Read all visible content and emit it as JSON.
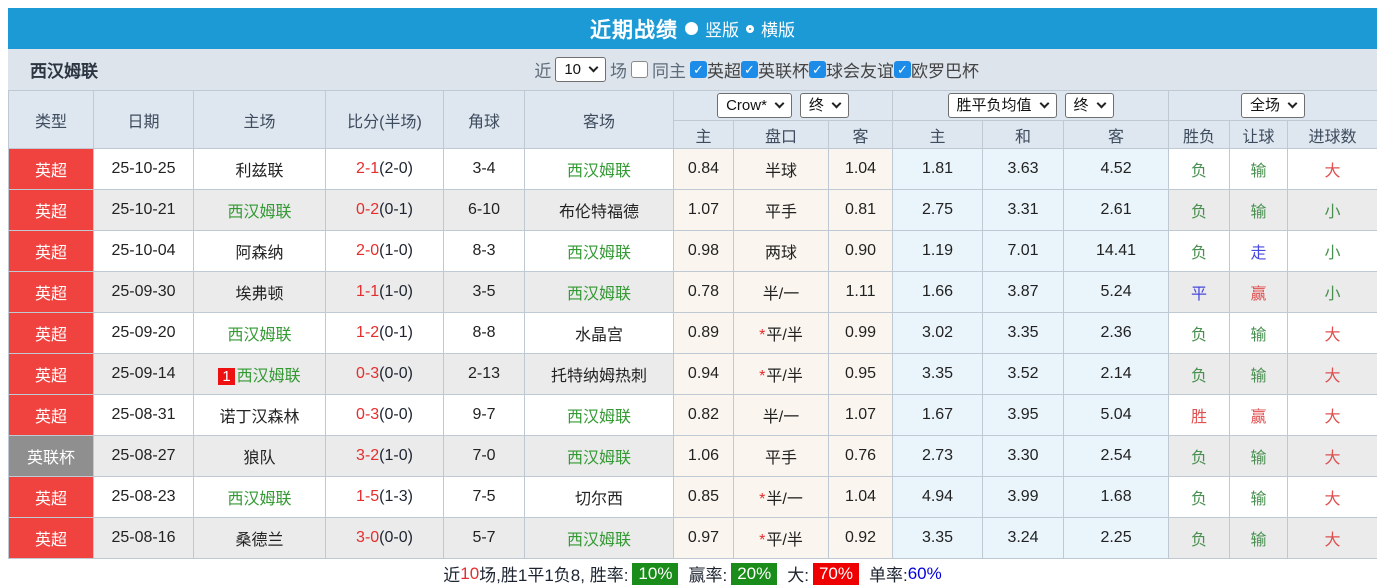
{
  "titlebar": {
    "title": "近期战绩",
    "view_options": [
      {
        "label": "竖版",
        "selected": true
      },
      {
        "label": "横版",
        "selected": false
      }
    ]
  },
  "filter": {
    "team": "西汉姆联",
    "recent_label": "近",
    "recent_count": "10",
    "games_label": "场",
    "same_home": {
      "label": "同主",
      "checked": false
    },
    "leagues": [
      {
        "label": "英超",
        "checked": true
      },
      {
        "label": "英联杯",
        "checked": true
      },
      {
        "label": "球会友谊",
        "checked": true
      },
      {
        "label": "欧罗巴杯",
        "checked": true
      }
    ]
  },
  "table": {
    "left_headers": [
      "类型",
      "日期",
      "主场",
      "比分(半场)",
      "角球",
      "客场"
    ],
    "selects": {
      "odds_source": "Crow*",
      "odds_time": "终",
      "europe_source": "胜平负均值",
      "europe_time": "终",
      "scope": "全场"
    },
    "sub_headers": [
      "主",
      "盘口",
      "客",
      "主",
      "和",
      "客",
      "胜负",
      "让球",
      "进球数"
    ],
    "rows": [
      {
        "type": "英超",
        "type_variant": "red",
        "date": "25-10-25",
        "home": "利兹联",
        "home_focus": false,
        "home_badge": "",
        "score": "2-1",
        "half": "(2-0)",
        "corner": "3-4",
        "away": "西汉姆联",
        "away_focus": true,
        "asian_home": "0.84",
        "handicap": "半球",
        "handicap_star": false,
        "asian_away": "1.04",
        "euro_home": "1.81",
        "euro_draw": "3.63",
        "euro_away": "4.52",
        "result": "负",
        "result_color": "green",
        "cover": "输",
        "cover_color": "green",
        "goals": "大",
        "goals_color": "red"
      },
      {
        "type": "英超",
        "type_variant": "red",
        "date": "25-10-21",
        "home": "西汉姆联",
        "home_focus": true,
        "home_badge": "",
        "score": "0-2",
        "half": "(0-1)",
        "corner": "6-10",
        "away": "布伦特福德",
        "away_focus": false,
        "asian_home": "1.07",
        "handicap": "平手",
        "handicap_star": false,
        "asian_away": "0.81",
        "euro_home": "2.75",
        "euro_draw": "3.31",
        "euro_away": "2.61",
        "result": "负",
        "result_color": "green",
        "cover": "输",
        "cover_color": "green",
        "goals": "小",
        "goals_color": "green"
      },
      {
        "type": "英超",
        "type_variant": "red",
        "date": "25-10-04",
        "home": "阿森纳",
        "home_focus": false,
        "home_badge": "",
        "score": "2-0",
        "half": "(1-0)",
        "corner": "8-3",
        "away": "西汉姆联",
        "away_focus": true,
        "asian_home": "0.98",
        "handicap": "两球",
        "handicap_star": false,
        "asian_away": "0.90",
        "euro_home": "1.19",
        "euro_draw": "7.01",
        "euro_away": "14.41",
        "result": "负",
        "result_color": "green",
        "cover": "走",
        "cover_color": "blue",
        "goals": "小",
        "goals_color": "green"
      },
      {
        "type": "英超",
        "type_variant": "red",
        "date": "25-09-30",
        "home": "埃弗顿",
        "home_focus": false,
        "home_badge": "",
        "score": "1-1",
        "half": "(1-0)",
        "corner": "3-5",
        "away": "西汉姆联",
        "away_focus": true,
        "asian_home": "0.78",
        "handicap": "半/一",
        "handicap_star": false,
        "asian_away": "1.11",
        "euro_home": "1.66",
        "euro_draw": "3.87",
        "euro_away": "5.24",
        "result": "平",
        "result_color": "blue",
        "cover": "赢",
        "cover_color": "red",
        "goals": "小",
        "goals_color": "green"
      },
      {
        "type": "英超",
        "type_variant": "red",
        "date": "25-09-20",
        "home": "西汉姆联",
        "home_focus": true,
        "home_badge": "",
        "score": "1-2",
        "half": "(0-1)",
        "corner": "8-8",
        "away": "水晶宫",
        "away_focus": false,
        "asian_home": "0.89",
        "handicap": "平/半",
        "handicap_star": true,
        "asian_away": "0.99",
        "euro_home": "3.02",
        "euro_draw": "3.35",
        "euro_away": "2.36",
        "result": "负",
        "result_color": "green",
        "cover": "输",
        "cover_color": "green",
        "goals": "大",
        "goals_color": "red"
      },
      {
        "type": "英超",
        "type_variant": "red",
        "date": "25-09-14",
        "home": "西汉姆联",
        "home_focus": true,
        "home_badge": "1",
        "score": "0-3",
        "half": "(0-0)",
        "corner": "2-13",
        "away": "托特纳姆热刺",
        "away_focus": false,
        "asian_home": "0.94",
        "handicap": "平/半",
        "handicap_star": true,
        "asian_away": "0.95",
        "euro_home": "3.35",
        "euro_draw": "3.52",
        "euro_away": "2.14",
        "result": "负",
        "result_color": "green",
        "cover": "输",
        "cover_color": "green",
        "goals": "大",
        "goals_color": "red"
      },
      {
        "type": "英超",
        "type_variant": "red",
        "date": "25-08-31",
        "home": "诺丁汉森林",
        "home_focus": false,
        "home_badge": "",
        "score": "0-3",
        "half": "(0-0)",
        "corner": "9-7",
        "away": "西汉姆联",
        "away_focus": true,
        "asian_home": "0.82",
        "handicap": "半/一",
        "handicap_star": false,
        "asian_away": "1.07",
        "euro_home": "1.67",
        "euro_draw": "3.95",
        "euro_away": "5.04",
        "result": "胜",
        "result_color": "red",
        "cover": "赢",
        "cover_color": "red",
        "goals": "大",
        "goals_color": "red"
      },
      {
        "type": "英联杯",
        "type_variant": "gray",
        "date": "25-08-27",
        "home": "狼队",
        "home_focus": false,
        "home_badge": "",
        "score": "3-2",
        "half": "(1-0)",
        "corner": "7-0",
        "away": "西汉姆联",
        "away_focus": true,
        "asian_home": "1.06",
        "handicap": "平手",
        "handicap_star": false,
        "asian_away": "0.76",
        "euro_home": "2.73",
        "euro_draw": "3.30",
        "euro_away": "2.54",
        "result": "负",
        "result_color": "green",
        "cover": "输",
        "cover_color": "green",
        "goals": "大",
        "goals_color": "red"
      },
      {
        "type": "英超",
        "type_variant": "red",
        "date": "25-08-23",
        "home": "西汉姆联",
        "home_focus": true,
        "home_badge": "",
        "score": "1-5",
        "half": "(1-3)",
        "corner": "7-5",
        "away": "切尔西",
        "away_focus": false,
        "asian_home": "0.85",
        "handicap": "半/一",
        "handicap_star": true,
        "asian_away": "1.04",
        "euro_home": "4.94",
        "euro_draw": "3.99",
        "euro_away": "1.68",
        "result": "负",
        "result_color": "green",
        "cover": "输",
        "cover_color": "green",
        "goals": "大",
        "goals_color": "red"
      },
      {
        "type": "英超",
        "type_variant": "red",
        "date": "25-08-16",
        "home": "桑德兰",
        "home_focus": false,
        "home_badge": "",
        "score": "3-0",
        "half": "(0-0)",
        "corner": "5-7",
        "away": "西汉姆联",
        "away_focus": true,
        "asian_home": "0.97",
        "handicap": "平/半",
        "handicap_star": true,
        "asian_away": "0.92",
        "euro_home": "3.35",
        "euro_draw": "3.24",
        "euro_away": "2.25",
        "result": "负",
        "result_color": "green",
        "cover": "输",
        "cover_color": "green",
        "goals": "大",
        "goals_color": "red"
      }
    ]
  },
  "summary": {
    "prefix": "近",
    "count": "10",
    "segment1": "场,胜1平1负8, 胜率:",
    "win_rate": "10%",
    "segment2": "赢率:",
    "cover_rate": "20%",
    "segment3": "大:",
    "big_rate": "70%",
    "segment4": "单率:",
    "odd_rate": "60%"
  },
  "colors": {
    "accent_blue": "#1b9ad6",
    "league_red": "#f0433f",
    "league_gray": "#8f8f8f",
    "team_green": "#339933",
    "win_green_badge": "#1a8c1a",
    "big_red_badge": "#ee0000",
    "link_blue": "#0000dd"
  }
}
